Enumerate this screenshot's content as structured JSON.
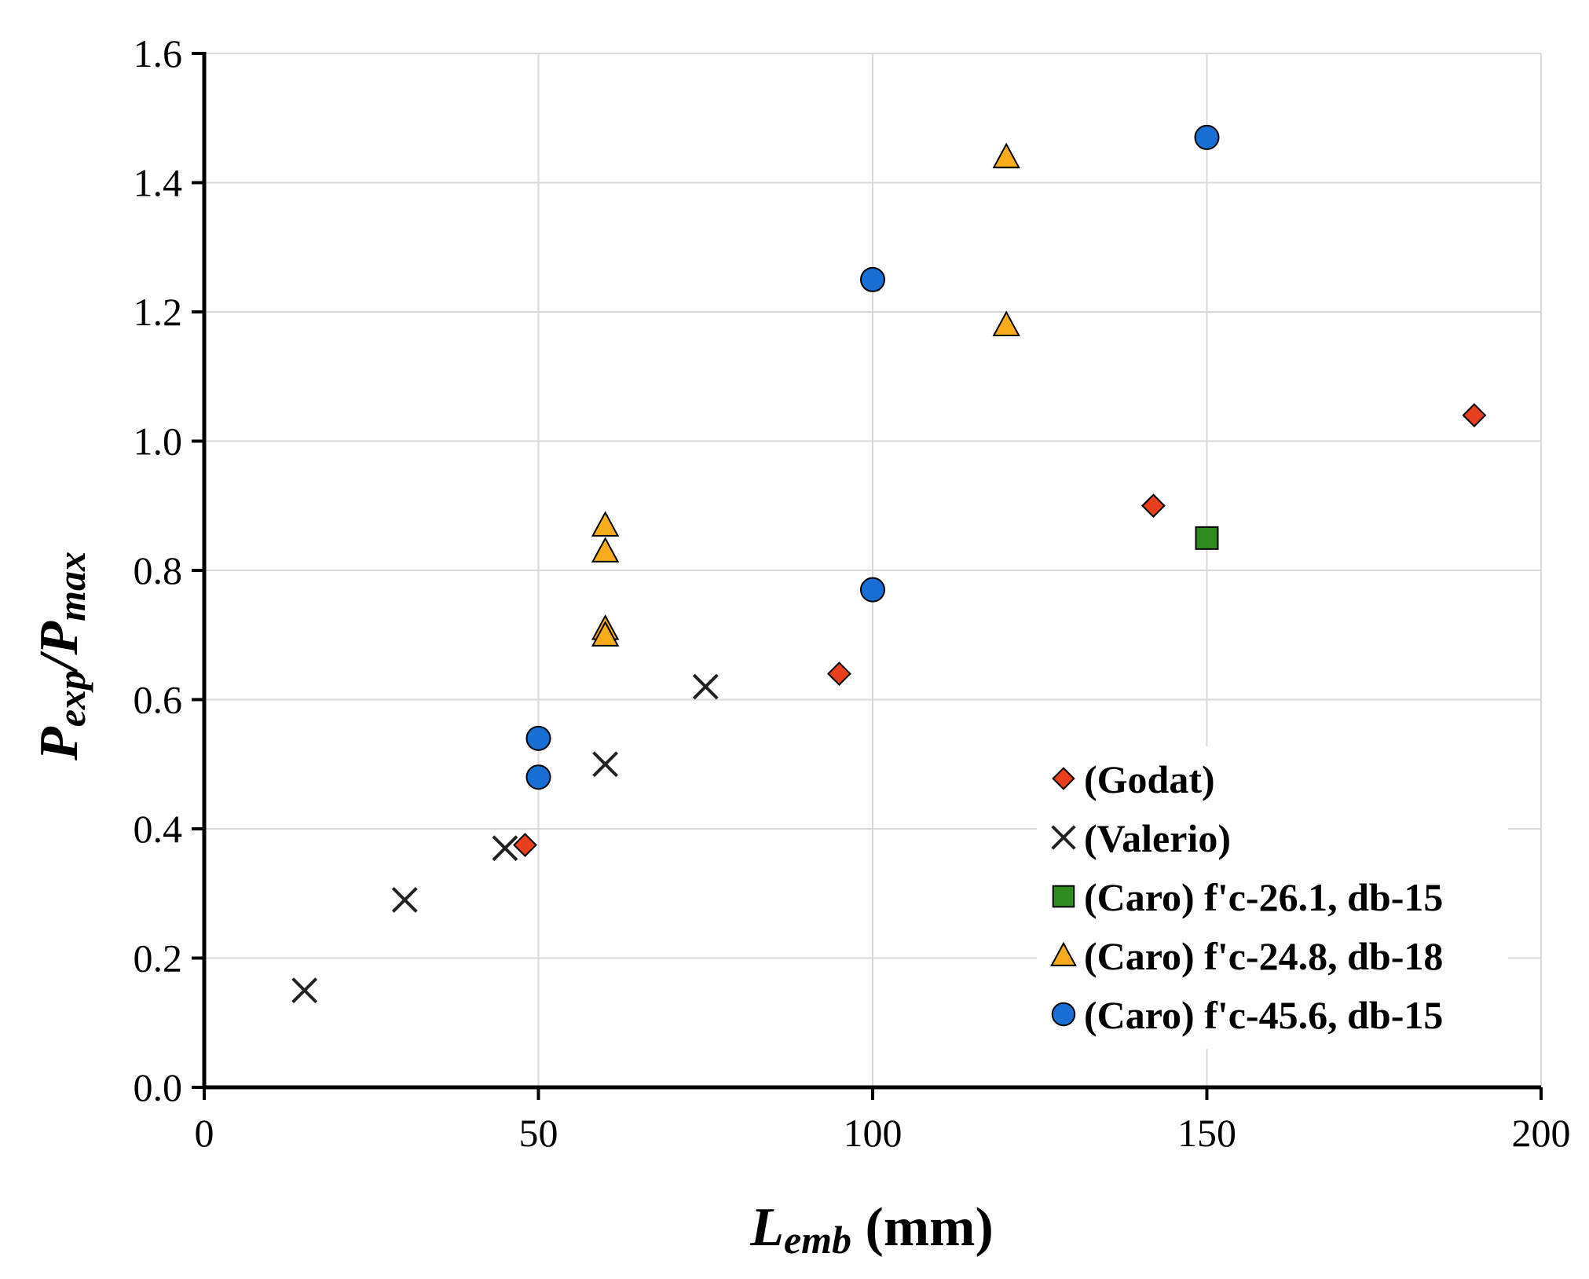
{
  "chart_data": {
    "type": "scatter",
    "title": "",
    "xlabel": {
      "main": "L",
      "sub": "emb",
      "suffix": " (mm)"
    },
    "ylabel": {
      "p1": "P",
      "s1": "exp",
      "slash": "/",
      "p2": "P",
      "s2": "max"
    },
    "xlim": [
      0,
      200
    ],
    "ylim": [
      0,
      1.6
    ],
    "x_ticks": [
      "0",
      "50",
      "100",
      "150",
      "200"
    ],
    "y_ticks": [
      "0.0",
      "0.2",
      "0.4",
      "0.6",
      "0.8",
      "1.0",
      "1.2",
      "1.4",
      "1.6"
    ],
    "grid": true,
    "legend_position": "bottom-right",
    "series": [
      {
        "name": "(Godat)",
        "marker": "diamond",
        "color": "#e8401c",
        "points": [
          [
            48,
            0.375
          ],
          [
            95,
            0.64
          ],
          [
            142,
            0.9
          ],
          [
            190,
            1.04
          ]
        ]
      },
      {
        "name": "(Valerio)",
        "marker": "x",
        "color": "#222222",
        "points": [
          [
            15,
            0.15
          ],
          [
            30,
            0.29
          ],
          [
            45,
            0.37
          ],
          [
            60,
            0.5
          ],
          [
            75,
            0.62
          ]
        ]
      },
      {
        "name": "(Caro) f'c-26.1, db-15",
        "marker": "square",
        "color": "#2e8b1e",
        "points": [
          [
            150,
            0.85
          ]
        ]
      },
      {
        "name": "(Caro) f'c-24.8, db-18",
        "marker": "triangle",
        "color": "#f7ac1b",
        "points": [
          [
            60,
            0.87
          ],
          [
            60,
            0.83
          ],
          [
            60,
            0.71
          ],
          [
            60,
            0.7
          ],
          [
            120,
            1.44
          ],
          [
            120,
            1.18
          ]
        ]
      },
      {
        "name": "(Caro) f'c-45.6, db-15",
        "marker": "circle",
        "color": "#1a6fd4",
        "points": [
          [
            50,
            0.54
          ],
          [
            50,
            0.48
          ],
          [
            100,
            1.25
          ],
          [
            100,
            0.77
          ],
          [
            150,
            1.47
          ]
        ]
      }
    ]
  }
}
